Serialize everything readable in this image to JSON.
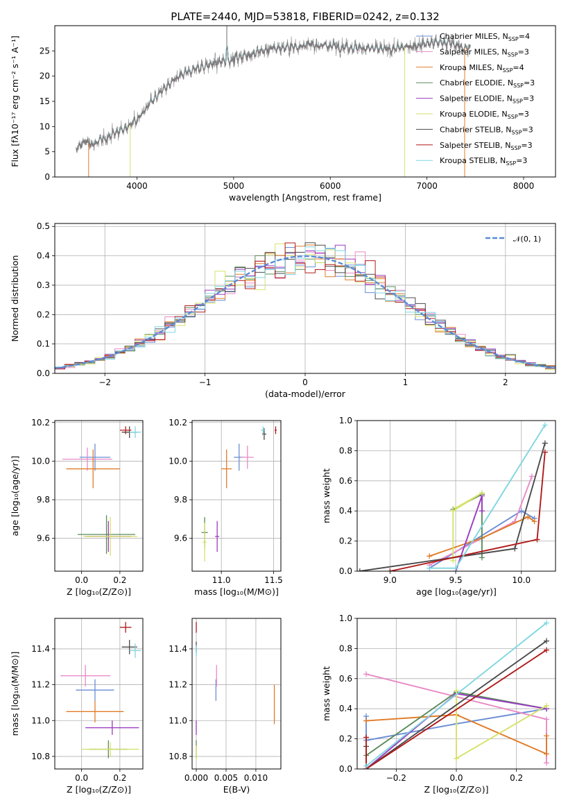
{
  "colors": {
    "chabrier_miles": "#6a8dd6",
    "salpeter_miles": "#e88ac6",
    "kroupa_miles": "#e07b27",
    "chabrier_elodie": "#5a8a5a",
    "salpeter_elodie": "#9a3bbf",
    "kroupa_elodie": "#d6e26a",
    "chabrier_stelib": "#4a4a4a",
    "salpeter_stelib": "#b01a1a",
    "kroupa_stelib": "#7fd6e0",
    "normal_curve": "#5b8bd6",
    "grid": "#b0b0b0"
  },
  "chart_data": [
    {
      "id": "spectrum",
      "type": "line",
      "title": "PLATE=2440, MJD=53818, FIBERID=0242, z=0.132",
      "xlabel": "wavelength [Angstrom, rest frame]",
      "ylabel": "Flux [fλ10⁻¹⁷ erg cm⁻² s⁻¹ A⁻¹]",
      "xlim": [
        3150,
        8330
      ],
      "ylim": [
        0,
        30
      ],
      "xticks": [
        4000,
        5000,
        6000,
        7000,
        8000
      ],
      "yticks": [
        0,
        5,
        10,
        15,
        20,
        25
      ],
      "grid": false,
      "legend_position": "right",
      "legend": [
        {
          "label": "Chabrier MILES, N",
          "sub": "SSP",
          "suffix": "=4",
          "color": "chabrier_miles"
        },
        {
          "label": "Salpeter MILES, N",
          "sub": "SSP",
          "suffix": "=3",
          "color": "salpeter_miles"
        },
        {
          "label": "Kroupa MILES, N",
          "sub": "SSP",
          "suffix": "=4",
          "color": "kroupa_miles"
        },
        {
          "label": "Chabrier ELODIE, N",
          "sub": "SSP",
          "suffix": "=3",
          "color": "chabrier_elodie"
        },
        {
          "label": "Salpeter ELODIE, N",
          "sub": "SSP",
          "suffix": "=3",
          "color": "salpeter_elodie"
        },
        {
          "label": "Kroupa ELODIE, N",
          "sub": "SSP",
          "suffix": "=3",
          "color": "kroupa_elodie"
        },
        {
          "label": "Chabrier STELIB, N",
          "sub": "SSP",
          "suffix": "=3",
          "color": "chabrier_stelib"
        },
        {
          "label": "Salpeter STELIB, N",
          "sub": "SSP",
          "suffix": "=3",
          "color": "salpeter_stelib"
        },
        {
          "label": "Kroupa STELIB, N",
          "sub": "SSP",
          "suffix": "=3",
          "color": "kroupa_stelib"
        }
      ],
      "continuum": [
        [
          3370,
          5.5
        ],
        [
          3450,
          7.0
        ],
        [
          3550,
          6.5
        ],
        [
          3650,
          7.5
        ],
        [
          3750,
          8.5
        ],
        [
          3850,
          9.5
        ],
        [
          3950,
          10.5
        ],
        [
          4050,
          12.5
        ],
        [
          4150,
          15.0
        ],
        [
          4250,
          17.0
        ],
        [
          4350,
          18.5
        ],
        [
          4450,
          20.0
        ],
        [
          4600,
          21.5
        ],
        [
          4800,
          22.5
        ],
        [
          5000,
          23.5
        ],
        [
          5200,
          24.5
        ],
        [
          5400,
          25.5
        ],
        [
          5600,
          25.8
        ],
        [
          5800,
          26.2
        ],
        [
          6000,
          26.0
        ],
        [
          6200,
          25.8
        ],
        [
          6400,
          25.5
        ],
        [
          6600,
          25.3
        ],
        [
          6800,
          25.8
        ],
        [
          7000,
          26.5
        ],
        [
          7200,
          26.8
        ],
        [
          7400,
          25.5
        ]
      ],
      "dips": [
        [
          3500,
          0
        ],
        [
          3930,
          0
        ],
        [
          6770,
          0
        ],
        [
          7390,
          0
        ]
      ]
    },
    {
      "id": "residuals",
      "type": "histogram",
      "xlabel": "(data-model)/error",
      "ylabel": "Normed distribution",
      "xlim": [
        -2.5,
        2.5
      ],
      "ylim": [
        0,
        0.51
      ],
      "xticks": [
        -2,
        -1,
        0,
        1,
        2
      ],
      "yticks": [
        0.0,
        0.1,
        0.2,
        0.3,
        0.4,
        0.5
      ],
      "grid": true,
      "legend_position": "top-right",
      "legend_label": "𝒩(0, 1)",
      "bin_width": 0.1
    },
    {
      "id": "age_vs_Z",
      "type": "scatter",
      "xlabel": "Z [log₁₀(Z/Z⊙)]",
      "ylabel": "age  [log₁₀(age/yr)]",
      "xlim": [
        -0.14,
        0.32
      ],
      "ylim": [
        9.43,
        10.21
      ],
      "xticks": [
        0.0,
        0.2
      ],
      "yticks": [
        9.6,
        9.8,
        10.0,
        10.2
      ],
      "grid": true,
      "points": [
        {
          "model": "chabrier_miles",
          "x": 0.07,
          "y": 10.02,
          "xerr": 0.08,
          "yerr": 0.07
        },
        {
          "model": "salpeter_miles",
          "x": 0.03,
          "y": 10.01,
          "xerr": 0.13,
          "yerr": 0.06
        },
        {
          "model": "kroupa_miles",
          "x": 0.06,
          "y": 9.96,
          "xerr": 0.14,
          "yerr": 0.1
        },
        {
          "model": "chabrier_elodie",
          "x": 0.13,
          "y": 9.62,
          "xerr": 0.15,
          "yerr": 0.1
        },
        {
          "model": "salpeter_elodie",
          "x": 0.14,
          "y": 9.61,
          "xerr": 0.12,
          "yerr": 0.08
        },
        {
          "model": "kroupa_elodie",
          "x": 0.15,
          "y": 9.61,
          "xerr": 0.14,
          "yerr": 0.1
        },
        {
          "model": "chabrier_stelib",
          "x": 0.25,
          "y": 10.15,
          "xerr": 0.04,
          "yerr": 0.03
        },
        {
          "model": "salpeter_stelib",
          "x": 0.23,
          "y": 10.16,
          "xerr": 0.03,
          "yerr": 0.02
        },
        {
          "model": "kroupa_stelib",
          "x": 0.28,
          "y": 10.15,
          "xerr": 0.03,
          "yerr": 0.03
        }
      ]
    },
    {
      "id": "age_vs_mass",
      "type": "scatter",
      "xlabel": "mass [log₁₀(M/M⊙)]",
      "ylabel": "",
      "xlim": [
        10.72,
        11.57
      ],
      "ylim": [
        9.43,
        10.21
      ],
      "xticks": [
        11.0,
        11.5
      ],
      "yticks": [
        9.6,
        9.8,
        10.0,
        10.2
      ],
      "grid": true,
      "points": [
        {
          "model": "chabrier_miles",
          "x": 11.17,
          "y": 10.02,
          "xerr": 0.05,
          "yerr": 0.07
        },
        {
          "model": "salpeter_miles",
          "x": 11.25,
          "y": 10.02,
          "xerr": 0.06,
          "yerr": 0.06
        },
        {
          "model": "kroupa_miles",
          "x": 11.05,
          "y": 9.96,
          "xerr": 0.05,
          "yerr": 0.1
        },
        {
          "model": "chabrier_elodie",
          "x": 10.84,
          "y": 9.63,
          "xerr": 0.03,
          "yerr": 0.08
        },
        {
          "model": "salpeter_elodie",
          "x": 10.96,
          "y": 9.61,
          "xerr": 0.02,
          "yerr": 0.08
        },
        {
          "model": "kroupa_elodie",
          "x": 10.84,
          "y": 9.58,
          "xerr": 0.02,
          "yerr": 0.1
        },
        {
          "model": "chabrier_stelib",
          "x": 11.41,
          "y": 10.14,
          "xerr": 0.02,
          "yerr": 0.03
        },
        {
          "model": "salpeter_stelib",
          "x": 11.52,
          "y": 10.16,
          "xerr": 0.01,
          "yerr": 0.02
        },
        {
          "model": "kroupa_stelib",
          "x": 11.4,
          "y": 10.16,
          "xerr": 0.02,
          "yerr": 0.02
        }
      ]
    },
    {
      "id": "weight_vs_age",
      "type": "line",
      "xlabel": "age  [log₁₀(age/yr)]",
      "ylabel": "mass weight",
      "xlim": [
        8.75,
        10.26
      ],
      "ylim": [
        0,
        1.0
      ],
      "xticks": [
        9.0,
        9.5,
        10.0
      ],
      "yticks": [
        0.0,
        0.2,
        0.4,
        0.6,
        0.8,
        1.0
      ],
      "grid": true,
      "series": [
        {
          "model": "chabrier_miles",
          "x": [
            9.3,
            10.0,
            10.1
          ],
          "y": [
            0.02,
            0.4,
            0.35
          ]
        },
        {
          "model": "salpeter_miles",
          "x": [
            9.3,
            9.95,
            10.08
          ],
          "y": [
            0.04,
            0.33,
            0.63
          ]
        },
        {
          "model": "kroupa_miles",
          "x": [
            9.3,
            9.7,
            10.05,
            10.1
          ],
          "y": [
            0.1,
            0.22,
            0.36,
            0.33
          ]
        },
        {
          "model": "chabrier_elodie",
          "x": [
            9.48,
            9.7,
            9.7
          ],
          "y": [
            0.41,
            0.51,
            0.09
          ]
        },
        {
          "model": "salpeter_elodie",
          "x": [
            9.5,
            9.7,
            9.7
          ],
          "y": [
            0.0,
            0.5,
            0.4
          ]
        },
        {
          "model": "kroupa_elodie",
          "x": [
            9.48,
            9.48,
            9.7,
            9.5
          ],
          "y": [
            0.07,
            0.4,
            0.52,
            0.42
          ]
        },
        {
          "model": "chabrier_stelib",
          "x": [
            8.77,
            9.95,
            10.18
          ],
          "y": [
            0.0,
            0.15,
            0.85
          ]
        },
        {
          "model": "salpeter_stelib",
          "x": [
            9.0,
            10.12,
            10.18
          ],
          "y": [
            0.0,
            0.21,
            0.79
          ]
        },
        {
          "model": "kroupa_stelib",
          "x": [
            9.3,
            9.5,
            10.18
          ],
          "y": [
            0.02,
            0.02,
            0.97
          ]
        }
      ]
    },
    {
      "id": "mass_vs_Z",
      "type": "scatter",
      "xlabel": "Z [log₁₀(Z/Z⊙)]",
      "ylabel": "mass [log₁₀(M/M⊙)]",
      "xlim": [
        -0.14,
        0.32
      ],
      "ylim": [
        10.73,
        11.57
      ],
      "xticks": [
        0.0,
        0.2
      ],
      "yticks": [
        10.8,
        11.0,
        11.2,
        11.4
      ],
      "grid": true,
      "points": [
        {
          "model": "chabrier_miles",
          "x": 0.07,
          "y": 11.17,
          "xerr": 0.1,
          "yerr": 0.06
        },
        {
          "model": "salpeter_miles",
          "x": 0.02,
          "y": 11.25,
          "xerr": 0.13,
          "yerr": 0.06
        },
        {
          "model": "kroupa_miles",
          "x": 0.07,
          "y": 11.05,
          "xerr": 0.15,
          "yerr": 0.06
        },
        {
          "model": "chabrier_elodie",
          "x": 0.14,
          "y": 10.84,
          "xerr": 0.1,
          "yerr": 0.05
        },
        {
          "model": "salpeter_elodie",
          "x": 0.16,
          "y": 10.96,
          "xerr": 0.14,
          "yerr": 0.04
        },
        {
          "model": "kroupa_elodie",
          "x": 0.15,
          "y": 10.84,
          "xerr": 0.15,
          "yerr": 0.04
        },
        {
          "model": "chabrier_stelib",
          "x": 0.25,
          "y": 11.41,
          "xerr": 0.04,
          "yerr": 0.04
        },
        {
          "model": "salpeter_stelib",
          "x": 0.23,
          "y": 11.52,
          "xerr": 0.03,
          "yerr": 0.03
        },
        {
          "model": "kroupa_stelib",
          "x": 0.28,
          "y": 11.39,
          "xerr": 0.03,
          "yerr": 0.04
        }
      ]
    },
    {
      "id": "mass_vs_ebv",
      "type": "scatter",
      "xlabel": "E(B-V)",
      "ylabel": "",
      "xlim": [
        -0.0007,
        0.0142
      ],
      "ylim": [
        10.73,
        11.57
      ],
      "xticks": [
        0.0,
        0.005,
        0.01
      ],
      "xtick_labels": [
        "0.000",
        "0.005",
        "0.010"
      ],
      "yticks": [
        10.8,
        11.0,
        11.2,
        11.4
      ],
      "grid": true,
      "points": [
        {
          "model": "chabrier_miles",
          "x": 0.0033,
          "y": 11.17,
          "xerr": 0,
          "yerr": 0.06
        },
        {
          "model": "salpeter_miles",
          "x": 0.0034,
          "y": 11.25,
          "xerr": 0,
          "yerr": 0.06
        },
        {
          "model": "kroupa_miles",
          "x": 0.0131,
          "y": 11.09,
          "xerr": 0,
          "yerr": 0.11
        },
        {
          "model": "chabrier_elodie",
          "x": 0.0,
          "y": 10.84,
          "xerr": 0,
          "yerr": 0.05
        },
        {
          "model": "salpeter_elodie",
          "x": 0.0,
          "y": 10.96,
          "xerr": 0,
          "yerr": 0.04
        },
        {
          "model": "kroupa_elodie",
          "x": 0.0,
          "y": 10.82,
          "xerr": 0,
          "yerr": 0.04
        },
        {
          "model": "chabrier_stelib",
          "x": 0.0,
          "y": 11.41,
          "xerr": 0,
          "yerr": 0.03
        },
        {
          "model": "salpeter_stelib",
          "x": 0.0,
          "y": 11.52,
          "xerr": 0,
          "yerr": 0.03
        },
        {
          "model": "kroupa_stelib",
          "x": 0.0,
          "y": 11.39,
          "xerr": 0,
          "yerr": 0.03
        }
      ]
    },
    {
      "id": "weight_vs_Z",
      "type": "line",
      "xlabel": "Z [log₁₀(Z/Z⊙)]",
      "ylabel": "mass weight",
      "xlim": [
        -0.33,
        0.33
      ],
      "ylim": [
        0,
        1.0
      ],
      "xticks": [
        -0.2,
        0.0,
        0.2
      ],
      "yticks": [
        0.0,
        0.2,
        0.4,
        0.6,
        0.8,
        1.0
      ],
      "grid": true,
      "series": [
        {
          "model": "chabrier_miles",
          "x": [
            -0.3,
            -0.3,
            0.0,
            0.3
          ],
          "y": [
            0.35,
            0.19,
            0.3,
            0.4
          ]
        },
        {
          "model": "salpeter_miles",
          "x": [
            -0.3,
            0.3,
            0.3
          ],
          "y": [
            0.63,
            0.33,
            0.04
          ]
        },
        {
          "model": "kroupa_miles",
          "x": [
            -0.3,
            0.0,
            0.3,
            0.3
          ],
          "y": [
            0.32,
            0.36,
            0.1,
            0.22
          ]
        },
        {
          "model": "chabrier_elodie",
          "x": [
            -0.3,
            0.0,
            0.3
          ],
          "y": [
            0.09,
            0.51,
            0.4
          ]
        },
        {
          "model": "salpeter_elodie",
          "x": [
            -0.3,
            0.0,
            0.3
          ],
          "y": [
            0.0,
            0.5,
            0.4
          ]
        },
        {
          "model": "kroupa_elodie",
          "x": [
            0.0,
            0.0,
            0.3,
            0.0
          ],
          "y": [
            0.52,
            0.07,
            0.42,
            0.07
          ]
        },
        {
          "model": "chabrier_stelib",
          "x": [
            -0.3,
            -0.3,
            0.3
          ],
          "y": [
            0.15,
            0.0,
            0.85
          ]
        },
        {
          "model": "salpeter_stelib",
          "x": [
            -0.3,
            -0.3,
            0.3
          ],
          "y": [
            0.21,
            0.0,
            0.79
          ]
        },
        {
          "model": "kroupa_stelib",
          "x": [
            -0.3,
            0.3
          ],
          "y": [
            0.02,
            0.97
          ]
        }
      ]
    }
  ]
}
